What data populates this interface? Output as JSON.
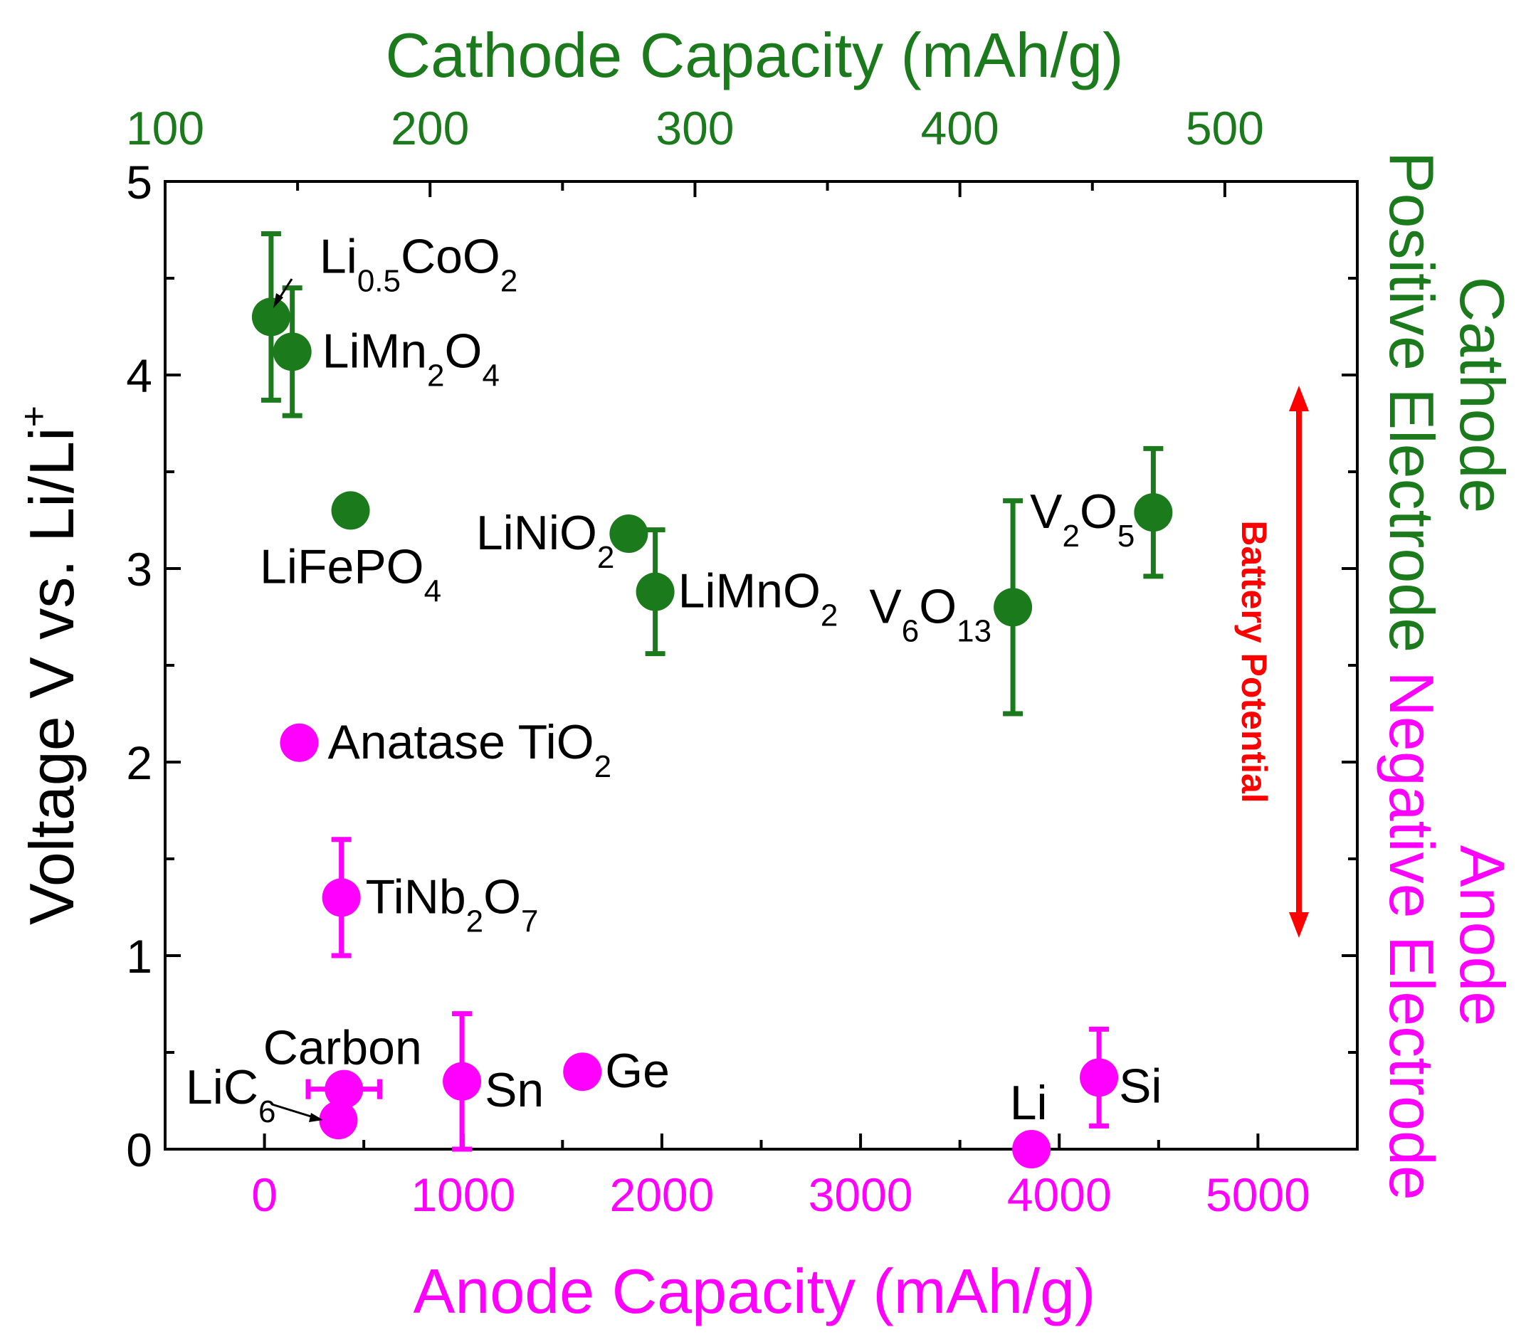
{
  "chart_data": {
    "type": "scatter",
    "title": "",
    "colors": {
      "cathode": "#1b7a1b",
      "anode": "#ff00ff",
      "potential": "#ff0000",
      "axis": "#000000"
    },
    "axes": {
      "y": {
        "label": "Voltage V vs. Li/Li",
        "label_sup": "+",
        "range": [
          0,
          5
        ],
        "ticks": [
          "0",
          "1",
          "2",
          "3",
          "4",
          "5"
        ]
      },
      "x_bottom": {
        "label": "Anode Capacity (mAh/g)",
        "range": [
          -500,
          5500
        ],
        "ticks": [
          "0",
          "1000",
          "2000",
          "3000",
          "4000",
          "5000"
        ]
      },
      "x_top": {
        "label": "Cathode Capacity (mAh/g)",
        "range": [
          100,
          550
        ],
        "ticks": [
          "100",
          "200",
          "300",
          "400",
          "500"
        ]
      }
    },
    "side_labels": {
      "cathode_title": "Cathode",
      "cathode_sub": "Positive Electrode",
      "anode_title": "Anode",
      "anode_sub": "Negative Electrode",
      "potential": "Battery Potential"
    },
    "series": [
      {
        "name": "Cathode",
        "axis": "top",
        "points": [
          {
            "id": "li05coo2",
            "x": 140,
            "y": 4.3,
            "err": 0.43,
            "label": {
              "parts": [
                [
                  "Li",
                  ""
                ],
                [
                  "0.5",
                  "sub"
                ],
                [
                  "CoO",
                  ""
                ],
                [
                  "2",
                  "sub"
                ]
              ]
            }
          },
          {
            "id": "limn2o4",
            "x": 148,
            "y": 4.12,
            "err": 0.33,
            "label": {
              "parts": [
                [
                  "LiMn",
                  ""
                ],
                [
                  "2",
                  "sub"
                ],
                [
                  "O",
                  ""
                ],
                [
                  "4",
                  "sub"
                ]
              ]
            }
          },
          {
            "id": "lifepo4",
            "x": 170,
            "y": 3.3,
            "err": 0,
            "label": {
              "parts": [
                [
                  "LiFePO",
                  ""
                ],
                [
                  "4",
                  "sub"
                ]
              ]
            }
          },
          {
            "id": "linio2",
            "x": 275,
            "y": 3.18,
            "err": 0,
            "label": {
              "parts": [
                [
                  "LiNiO",
                  ""
                ],
                [
                  "2",
                  "sub"
                ]
              ]
            }
          },
          {
            "id": "limno2",
            "x": 285,
            "y": 2.88,
            "err": 0.32,
            "label": {
              "parts": [
                [
                  "LiMnO",
                  ""
                ],
                [
                  "2",
                  "sub"
                ]
              ]
            }
          },
          {
            "id": "v6o13",
            "x": 420,
            "y": 2.8,
            "err": 0.55,
            "label": {
              "parts": [
                [
                  "V",
                  ""
                ],
                [
                  "6",
                  "sub"
                ],
                [
                  "O",
                  ""
                ],
                [
                  "13",
                  "sub"
                ]
              ]
            }
          },
          {
            "id": "v2o5",
            "x": 473,
            "y": 3.29,
            "err": 0.33,
            "label": {
              "parts": [
                [
                  "V",
                  ""
                ],
                [
                  "2",
                  "sub"
                ],
                [
                  "O",
                  ""
                ],
                [
                  "5",
                  "sub"
                ]
              ]
            }
          }
        ]
      },
      {
        "name": "Anode",
        "axis": "bottom",
        "points": [
          {
            "id": "anatase-tio2",
            "x": 175,
            "y": 2.1,
            "err": 0,
            "label": {
              "parts": [
                [
                  "Anatase TiO",
                  ""
                ],
                [
                  "2",
                  "sub"
                ]
              ]
            }
          },
          {
            "id": "tinb2o7",
            "x": 387,
            "y": 1.3,
            "err": 0.3,
            "label": {
              "parts": [
                [
                  "TiNb",
                  ""
                ],
                [
                  "2",
                  "sub"
                ],
                [
                  "O",
                  ""
                ],
                [
                  "7",
                  "sub"
                ]
              ]
            }
          },
          {
            "id": "carbon",
            "x": 400,
            "y": 0.31,
            "err": 0,
            "xerr": 180,
            "label": {
              "parts": [
                [
                  "Carbon",
                  ""
                ]
              ]
            }
          },
          {
            "id": "lic6",
            "x": 372,
            "y": 0.15,
            "err": 0,
            "label": {
              "parts": [
                [
                  "LiC",
                  ""
                ],
                [
                  "6",
                  "sub"
                ]
              ]
            }
          },
          {
            "id": "sn",
            "x": 994,
            "y": 0.35,
            "err": 0.35,
            "label": {
              "parts": [
                [
                  "Sn",
                  ""
                ]
              ]
            }
          },
          {
            "id": "ge",
            "x": 1600,
            "y": 0.4,
            "err": 0,
            "label": {
              "parts": [
                [
                  "Ge",
                  ""
                ]
              ]
            }
          },
          {
            "id": "li",
            "x": 3860,
            "y": 0.0,
            "err": 0,
            "label": {
              "parts": [
                [
                  "Li",
                  ""
                ]
              ]
            }
          },
          {
            "id": "si",
            "x": 4200,
            "y": 0.37,
            "err": 0.25,
            "label": {
              "parts": [
                [
                  "Si",
                  ""
                ]
              ]
            }
          }
        ]
      }
    ]
  }
}
